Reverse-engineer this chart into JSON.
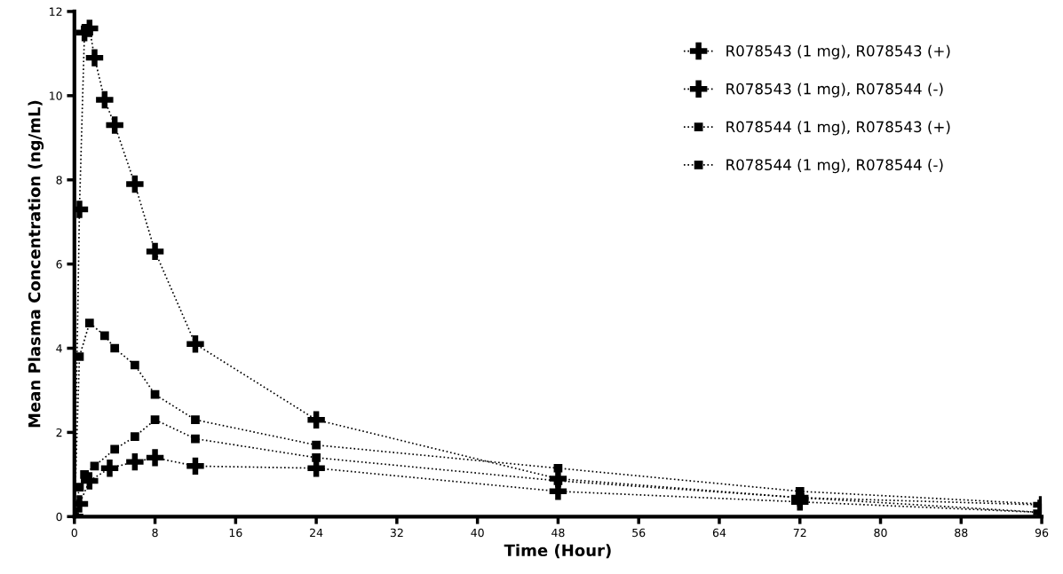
{
  "chart_data": {
    "type": "line",
    "xlabel": "Time (Hour)",
    "ylabel": "Mean Plasma Concentration (ng/mL)",
    "xlim": [
      0,
      96
    ],
    "xticks": [
      0,
      8,
      16,
      24,
      32,
      40,
      48,
      56,
      64,
      72,
      80,
      88,
      96
    ],
    "ylim": [
      0,
      12
    ],
    "yticks": [
      0,
      2,
      4,
      6,
      8,
      10,
      12
    ],
    "grid": false,
    "legend": "top right",
    "line_style": "dotted",
    "series": [
      {
        "name": "R078543 (1 mg), R078543 (+)",
        "color": "#000000",
        "marker": "cross",
        "x": [
          0,
          0.5,
          1,
          1.5,
          2,
          3,
          4,
          6,
          8,
          12,
          24,
          48,
          72,
          96
        ],
        "values": [
          0,
          7.3,
          11.5,
          11.6,
          10.9,
          9.9,
          9.3,
          7.9,
          6.3,
          4.1,
          2.3,
          0.9,
          0.45,
          0.28
        ]
      },
      {
        "name": "R078543 (1 mg), R078544 (-)",
        "color": "#000000",
        "marker": "cross",
        "x": [
          0,
          0.5,
          1.5,
          3.5,
          6,
          8,
          12,
          24,
          48,
          72,
          96
        ],
        "values": [
          0,
          0.3,
          0.85,
          1.15,
          1.3,
          1.4,
          1.2,
          1.15,
          0.6,
          0.35,
          0.1
        ]
      },
      {
        "name": "R078544 (1 mg), R078543 (+)",
        "color": "#000000",
        "marker": "square",
        "x": [
          0,
          0.5,
          1.5,
          3,
          4,
          6,
          8,
          12,
          24,
          48,
          72,
          96
        ],
        "values": [
          0,
          3.8,
          4.6,
          4.3,
          4.0,
          3.6,
          2.9,
          2.3,
          1.7,
          1.15,
          0.6,
          0.3
        ]
      },
      {
        "name": "R078544 (1 mg), R078544 (-)",
        "color": "#000000",
        "marker": "square",
        "x": [
          0,
          0.5,
          1,
          2,
          4,
          6,
          8,
          12,
          24,
          48,
          72,
          96
        ],
        "values": [
          0,
          0.7,
          1.0,
          1.2,
          1.6,
          1.9,
          2.3,
          1.85,
          1.4,
          0.85,
          0.45,
          0.1
        ]
      }
    ]
  }
}
